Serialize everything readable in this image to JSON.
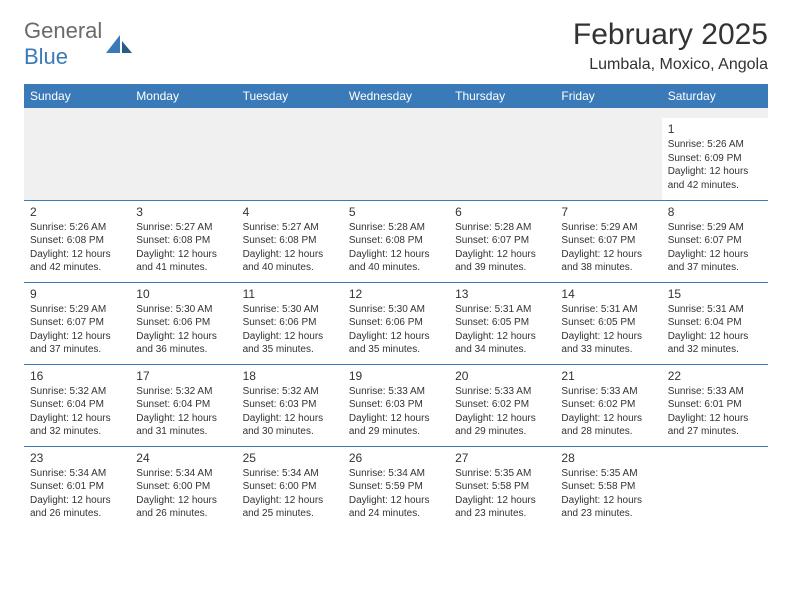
{
  "logo": {
    "text1": "General",
    "text2": "Blue"
  },
  "title": "February 2025",
  "location": "Lumbala, Moxico, Angola",
  "header_color": "#3a7ab8",
  "row_border_color": "#3a7ab8",
  "blank_bg": "#f0f0f0",
  "day_headers": [
    "Sunday",
    "Monday",
    "Tuesday",
    "Wednesday",
    "Thursday",
    "Friday",
    "Saturday"
  ],
  "weeks": [
    [
      null,
      null,
      null,
      null,
      null,
      null,
      {
        "n": "1",
        "sr": "Sunrise: 5:26 AM",
        "ss": "Sunset: 6:09 PM",
        "dl": "Daylight: 12 hours and 42 minutes."
      }
    ],
    [
      {
        "n": "2",
        "sr": "Sunrise: 5:26 AM",
        "ss": "Sunset: 6:08 PM",
        "dl": "Daylight: 12 hours and 42 minutes."
      },
      {
        "n": "3",
        "sr": "Sunrise: 5:27 AM",
        "ss": "Sunset: 6:08 PM",
        "dl": "Daylight: 12 hours and 41 minutes."
      },
      {
        "n": "4",
        "sr": "Sunrise: 5:27 AM",
        "ss": "Sunset: 6:08 PM",
        "dl": "Daylight: 12 hours and 40 minutes."
      },
      {
        "n": "5",
        "sr": "Sunrise: 5:28 AM",
        "ss": "Sunset: 6:08 PM",
        "dl": "Daylight: 12 hours and 40 minutes."
      },
      {
        "n": "6",
        "sr": "Sunrise: 5:28 AM",
        "ss": "Sunset: 6:07 PM",
        "dl": "Daylight: 12 hours and 39 minutes."
      },
      {
        "n": "7",
        "sr": "Sunrise: 5:29 AM",
        "ss": "Sunset: 6:07 PM",
        "dl": "Daylight: 12 hours and 38 minutes."
      },
      {
        "n": "8",
        "sr": "Sunrise: 5:29 AM",
        "ss": "Sunset: 6:07 PM",
        "dl": "Daylight: 12 hours and 37 minutes."
      }
    ],
    [
      {
        "n": "9",
        "sr": "Sunrise: 5:29 AM",
        "ss": "Sunset: 6:07 PM",
        "dl": "Daylight: 12 hours and 37 minutes."
      },
      {
        "n": "10",
        "sr": "Sunrise: 5:30 AM",
        "ss": "Sunset: 6:06 PM",
        "dl": "Daylight: 12 hours and 36 minutes."
      },
      {
        "n": "11",
        "sr": "Sunrise: 5:30 AM",
        "ss": "Sunset: 6:06 PM",
        "dl": "Daylight: 12 hours and 35 minutes."
      },
      {
        "n": "12",
        "sr": "Sunrise: 5:30 AM",
        "ss": "Sunset: 6:06 PM",
        "dl": "Daylight: 12 hours and 35 minutes."
      },
      {
        "n": "13",
        "sr": "Sunrise: 5:31 AM",
        "ss": "Sunset: 6:05 PM",
        "dl": "Daylight: 12 hours and 34 minutes."
      },
      {
        "n": "14",
        "sr": "Sunrise: 5:31 AM",
        "ss": "Sunset: 6:05 PM",
        "dl": "Daylight: 12 hours and 33 minutes."
      },
      {
        "n": "15",
        "sr": "Sunrise: 5:31 AM",
        "ss": "Sunset: 6:04 PM",
        "dl": "Daylight: 12 hours and 32 minutes."
      }
    ],
    [
      {
        "n": "16",
        "sr": "Sunrise: 5:32 AM",
        "ss": "Sunset: 6:04 PM",
        "dl": "Daylight: 12 hours and 32 minutes."
      },
      {
        "n": "17",
        "sr": "Sunrise: 5:32 AM",
        "ss": "Sunset: 6:04 PM",
        "dl": "Daylight: 12 hours and 31 minutes."
      },
      {
        "n": "18",
        "sr": "Sunrise: 5:32 AM",
        "ss": "Sunset: 6:03 PM",
        "dl": "Daylight: 12 hours and 30 minutes."
      },
      {
        "n": "19",
        "sr": "Sunrise: 5:33 AM",
        "ss": "Sunset: 6:03 PM",
        "dl": "Daylight: 12 hours and 29 minutes."
      },
      {
        "n": "20",
        "sr": "Sunrise: 5:33 AM",
        "ss": "Sunset: 6:02 PM",
        "dl": "Daylight: 12 hours and 29 minutes."
      },
      {
        "n": "21",
        "sr": "Sunrise: 5:33 AM",
        "ss": "Sunset: 6:02 PM",
        "dl": "Daylight: 12 hours and 28 minutes."
      },
      {
        "n": "22",
        "sr": "Sunrise: 5:33 AM",
        "ss": "Sunset: 6:01 PM",
        "dl": "Daylight: 12 hours and 27 minutes."
      }
    ],
    [
      {
        "n": "23",
        "sr": "Sunrise: 5:34 AM",
        "ss": "Sunset: 6:01 PM",
        "dl": "Daylight: 12 hours and 26 minutes."
      },
      {
        "n": "24",
        "sr": "Sunrise: 5:34 AM",
        "ss": "Sunset: 6:00 PM",
        "dl": "Daylight: 12 hours and 26 minutes."
      },
      {
        "n": "25",
        "sr": "Sunrise: 5:34 AM",
        "ss": "Sunset: 6:00 PM",
        "dl": "Daylight: 12 hours and 25 minutes."
      },
      {
        "n": "26",
        "sr": "Sunrise: 5:34 AM",
        "ss": "Sunset: 5:59 PM",
        "dl": "Daylight: 12 hours and 24 minutes."
      },
      {
        "n": "27",
        "sr": "Sunrise: 5:35 AM",
        "ss": "Sunset: 5:58 PM",
        "dl": "Daylight: 12 hours and 23 minutes."
      },
      {
        "n": "28",
        "sr": "Sunrise: 5:35 AM",
        "ss": "Sunset: 5:58 PM",
        "dl": "Daylight: 12 hours and 23 minutes."
      },
      null
    ]
  ]
}
